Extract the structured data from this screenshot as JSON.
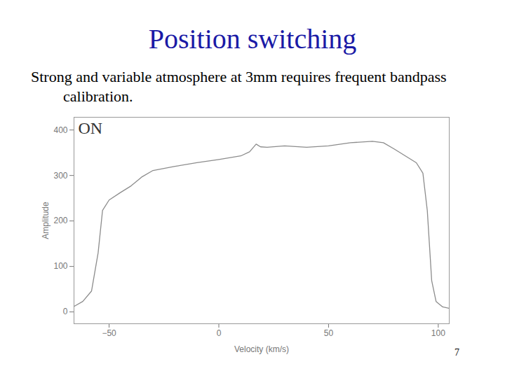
{
  "slide": {
    "title": "Position switching",
    "text": "Strong and variable atmosphere at 3mm requires frequent bandpass calibration.",
    "page_number": 7
  },
  "chart_data": {
    "type": "line",
    "annotation": "ON",
    "xlabel": "Velocity (km/s)",
    "ylabel": "Amplitude",
    "color": "#8c8c8c",
    "x": [
      -66,
      -62,
      -58,
      -55,
      -53,
      -50,
      -45,
      -40,
      -35,
      -30,
      -20,
      -10,
      0,
      10,
      14,
      17,
      19,
      22,
      30,
      40,
      50,
      60,
      70,
      75,
      80,
      85,
      90,
      93,
      95,
      97,
      99,
      102,
      105
    ],
    "values": [
      12,
      23,
      46,
      130,
      223,
      246,
      262,
      277,
      297,
      311,
      320,
      328,
      335,
      343,
      352,
      369,
      363,
      362,
      365,
      362,
      365,
      372,
      375,
      372,
      358,
      343,
      328,
      305,
      223,
      69,
      23,
      11,
      8
    ],
    "xlim": [
      -66,
      105
    ],
    "ylim": [
      -26,
      428
    ],
    "xticks": [
      -50,
      0,
      50,
      100
    ],
    "yticks": [
      0,
      100,
      200,
      300,
      400
    ]
  }
}
